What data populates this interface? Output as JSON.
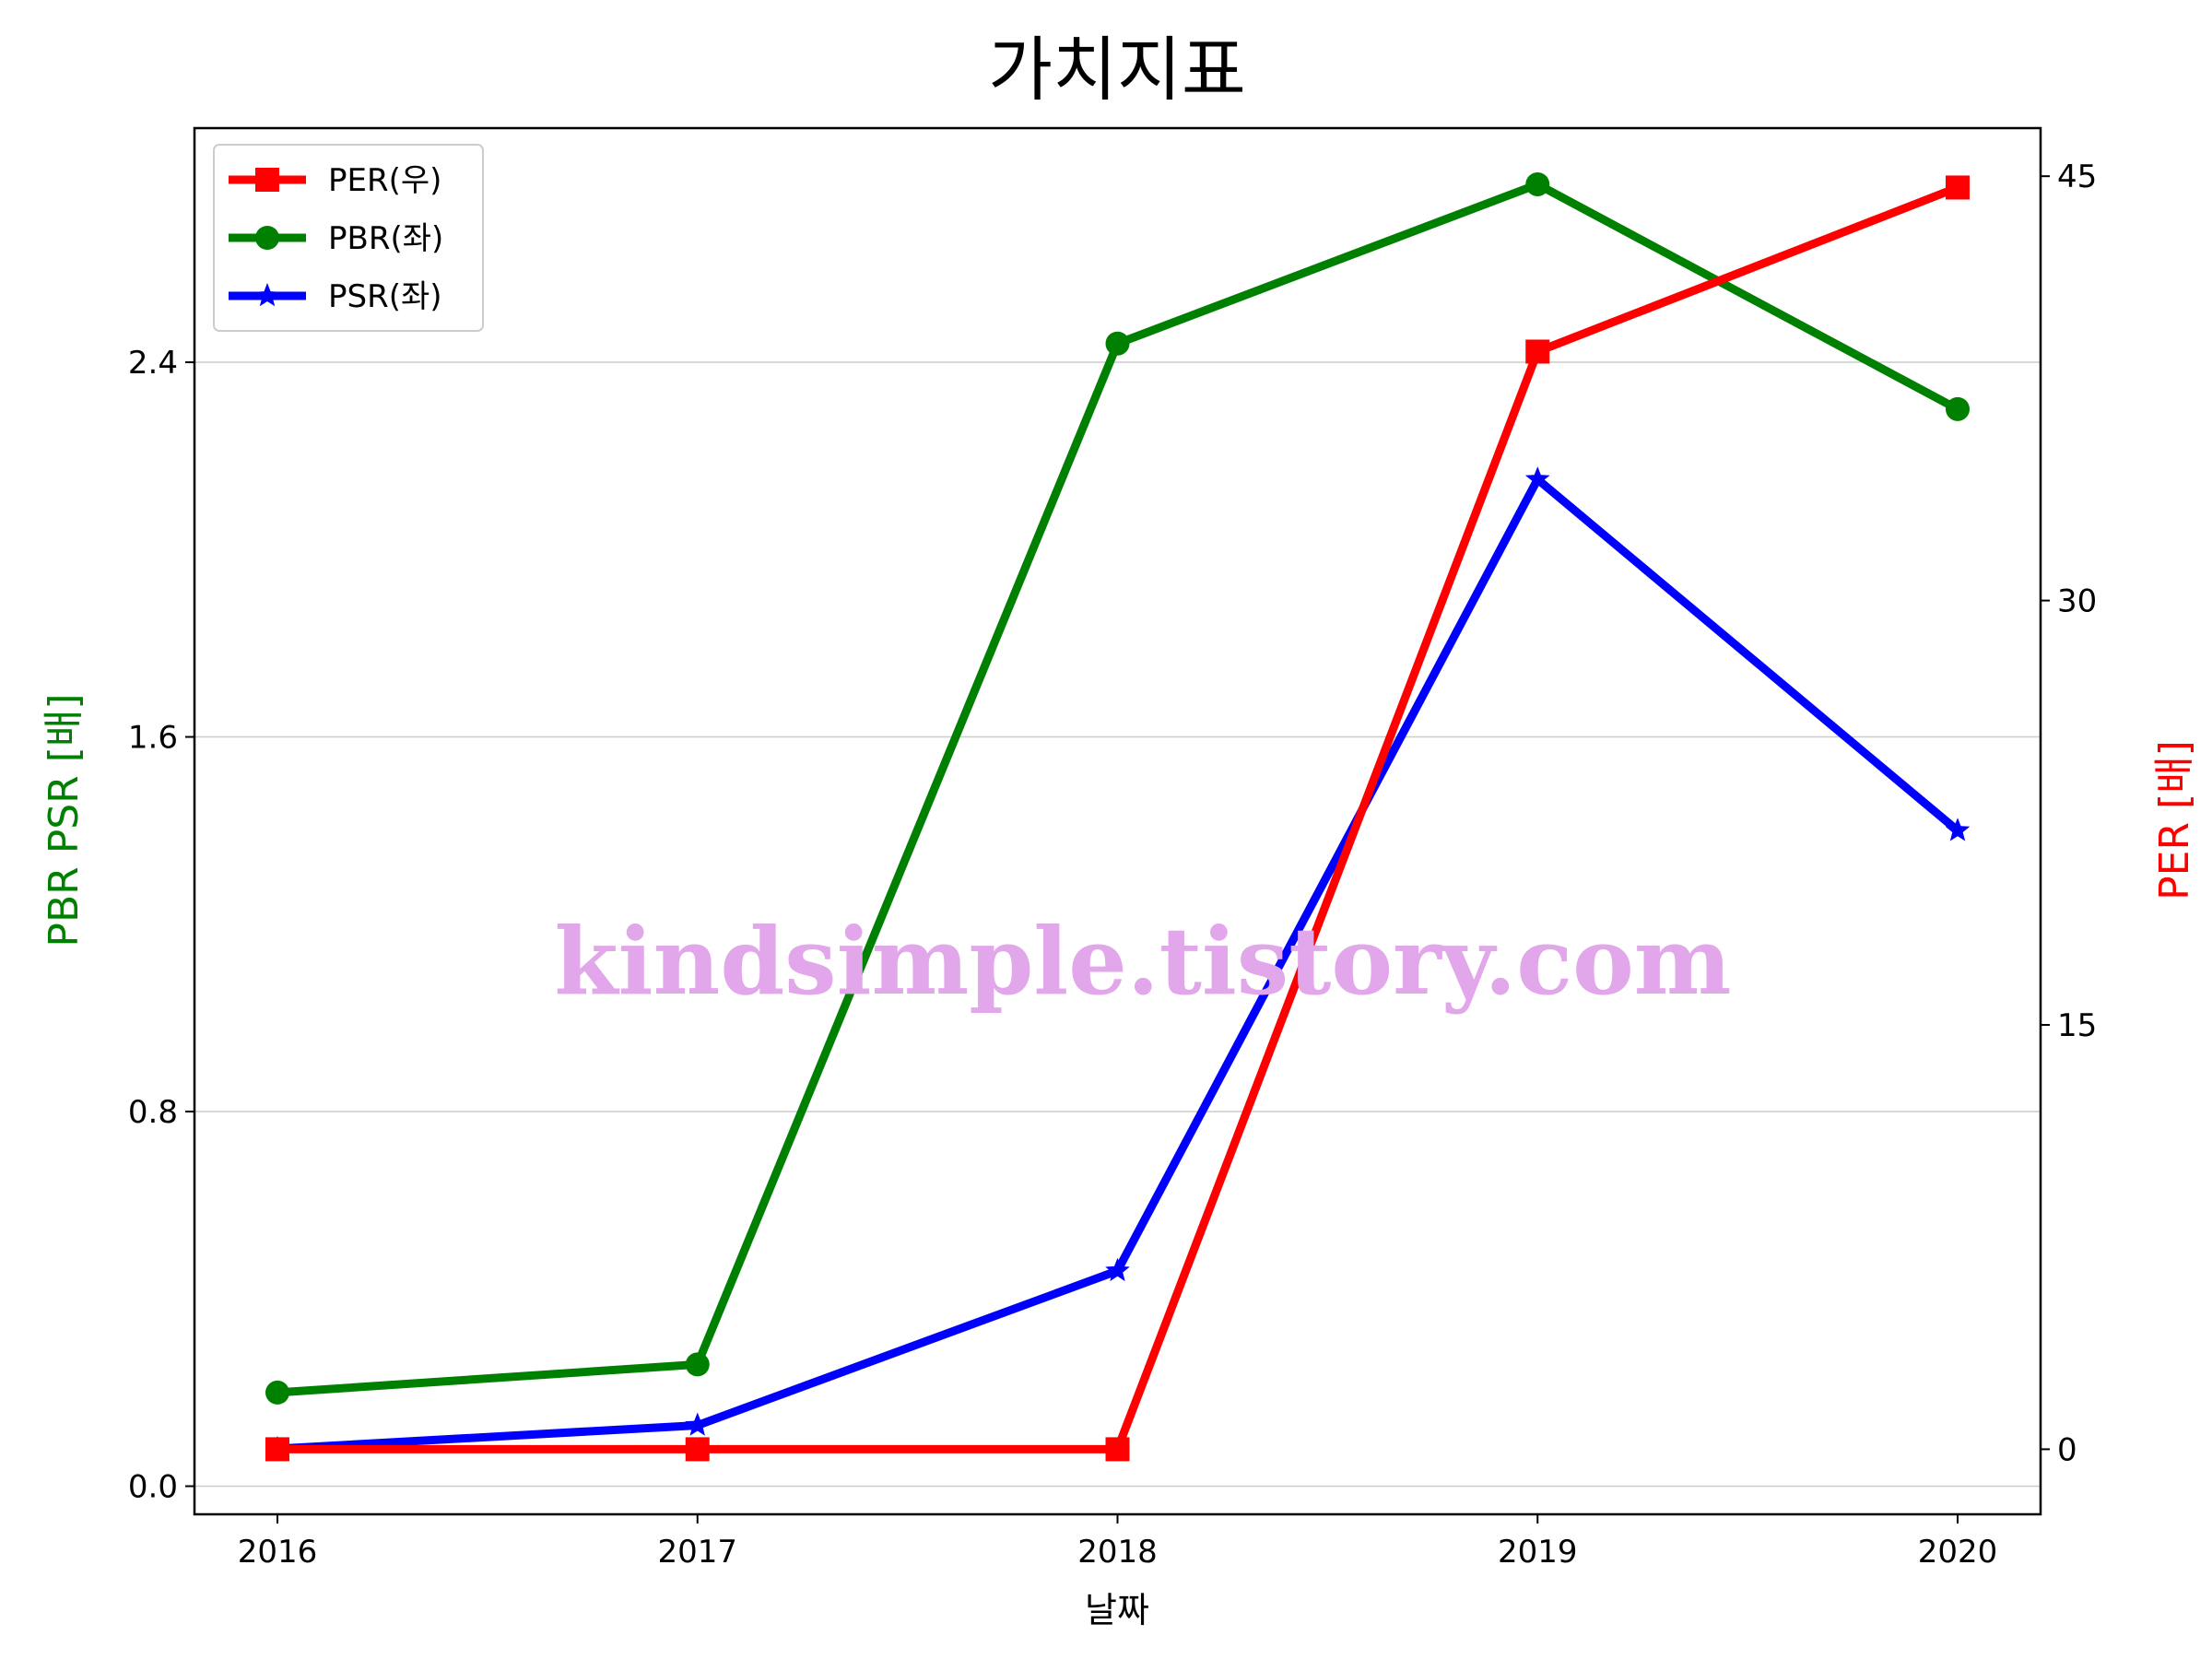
{
  "chart_data": {
    "type": "line",
    "title": "가치지표",
    "xlabel": "날짜",
    "ylabel_left": "PBR PSR [배]",
    "ylabel_right": "PER [배]",
    "categories": [
      "2016",
      "2017",
      "2018",
      "2019",
      "2020"
    ],
    "left_axis": {
      "ylim": [
        -0.06,
        2.9
      ],
      "ticks": [
        "0.0",
        "0.8",
        "1.6",
        "2.4"
      ],
      "tick_values": [
        0.0,
        0.8,
        1.6,
        2.4
      ]
    },
    "right_axis": {
      "ylim": [
        -2.3,
        46.7
      ],
      "ticks": [
        "0",
        "15",
        "30",
        "45"
      ],
      "tick_values": [
        0,
        15,
        30,
        45
      ]
    },
    "series": [
      {
        "name": "PER(우)",
        "axis": "right",
        "color": "#ff0000",
        "marker": "square",
        "values": [
          0,
          0,
          0,
          38.8,
          44.6
        ]
      },
      {
        "name": "PBR(좌)",
        "axis": "left",
        "color": "#008000",
        "marker": "circle",
        "values": [
          0.2,
          0.26,
          2.44,
          2.78,
          2.3
        ]
      },
      {
        "name": "PSR(좌)",
        "axis": "left",
        "color": "#0000ff",
        "marker": "star",
        "values": [
          0.08,
          0.13,
          0.46,
          2.15,
          1.4
        ]
      }
    ],
    "grid": "horizontal (left axis)",
    "legend_position": "upper-left",
    "axis_label_colors": {
      "left": "#008000",
      "right": "#ff0000"
    }
  },
  "watermark_text": "kindsimple.tistory.com"
}
